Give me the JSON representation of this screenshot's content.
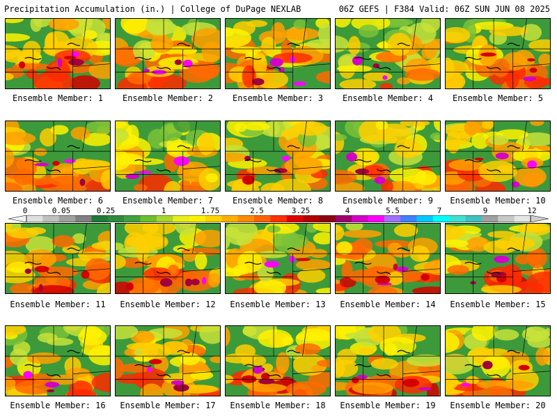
{
  "header": {
    "left": "Precipitation Accumulation (in.) | College of DuPage NEXLAB",
    "right": "06Z GEFS | F384 Valid: 06Z SUN JUN 08 2025"
  },
  "members": [
    {
      "label": "Ensemble Member: 1",
      "wetness": 0.62,
      "hot": 0.78
    },
    {
      "label": "Ensemble Member: 2",
      "wetness": 0.55,
      "hot": 0.7
    },
    {
      "label": "Ensemble Member: 3",
      "wetness": 0.6,
      "hot": 0.75
    },
    {
      "label": "Ensemble Member: 4",
      "wetness": 0.42,
      "hot": 0.55
    },
    {
      "label": "Ensemble Member: 5",
      "wetness": 0.55,
      "hot": 0.6
    },
    {
      "label": "Ensemble Member: 6",
      "wetness": 0.7,
      "hot": 0.72
    },
    {
      "label": "Ensemble Member: 7",
      "wetness": 0.4,
      "hot": 0.45
    },
    {
      "label": "Ensemble Member: 8",
      "wetness": 0.48,
      "hot": 0.6
    },
    {
      "label": "Ensemble Member: 9",
      "wetness": 0.42,
      "hot": 0.55
    },
    {
      "label": "Ensemble Member: 10",
      "wetness": 0.62,
      "hot": 0.65
    },
    {
      "label": "Ensemble Member: 11",
      "wetness": 0.62,
      "hot": 0.68
    },
    {
      "label": "Ensemble Member: 12",
      "wetness": 0.66,
      "hot": 0.8
    },
    {
      "label": "Ensemble Member: 13",
      "wetness": 0.38,
      "hot": 0.45
    },
    {
      "label": "Ensemble Member: 14",
      "wetness": 0.68,
      "hot": 0.78
    },
    {
      "label": "Ensemble Member: 15",
      "wetness": 0.66,
      "hot": 0.68
    },
    {
      "label": "Ensemble Member: 16",
      "wetness": 0.55,
      "hot": 0.55
    },
    {
      "label": "Ensemble Member: 17",
      "wetness": 0.6,
      "hot": 0.62
    },
    {
      "label": "Ensemble Member: 18",
      "wetness": 0.66,
      "hot": 0.85
    },
    {
      "label": "Ensemble Member: 19",
      "wetness": 0.58,
      "hot": 0.7
    },
    {
      "label": "Ensemble Member: 20",
      "wetness": 0.5,
      "hot": 0.55
    }
  ],
  "colorbar": {
    "ticks": [
      "0",
      "0.05",
      "0.25",
      "1",
      "1.75",
      "2.5",
      "3.25",
      "4",
      "5.5",
      "7",
      "9",
      "12"
    ],
    "colors": [
      "#e0e0e0",
      "#c0c0c0",
      "#a0a0a0",
      "#808080",
      "#1f7a3a",
      "#2e8b3a",
      "#3fa23f",
      "#6cbf2e",
      "#a8d62a",
      "#e6ef1a",
      "#fff200",
      "#ffd400",
      "#ffb000",
      "#ff8c00",
      "#ff6400",
      "#ff3000",
      "#e00000",
      "#b40000",
      "#8c0010",
      "#a0006e",
      "#d400c8",
      "#ff00ff",
      "#a070ff",
      "#4080ff",
      "#00c8ff",
      "#00ffff",
      "#40e0d0",
      "#40c0c0",
      "#a0a0a0",
      "#c8c8c8",
      "#e6e6e6"
    ]
  }
}
